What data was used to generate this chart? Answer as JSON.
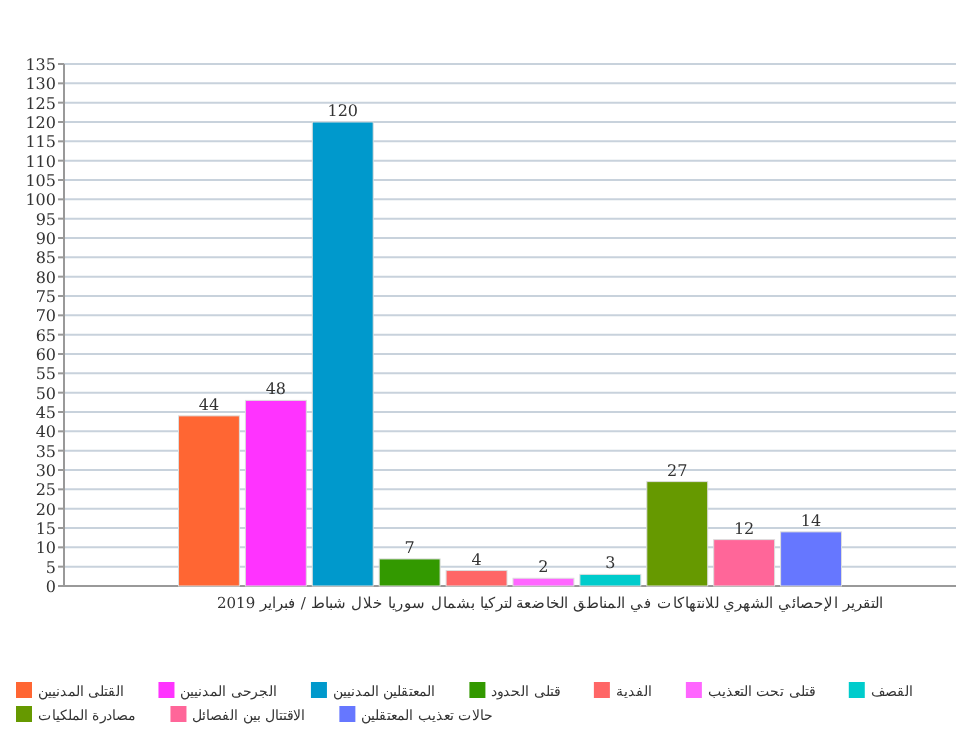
{
  "chart_data": {
    "type": "bar",
    "xlabel": "التقرير الإحصائي الشهري للانتهاكات في المناطق الخاضعة لتركيا بشمال سوريا خلال شباط / فبراير 2019",
    "categories": [
      null
    ],
    "series": [
      {
        "name": "القتلى المدنيين",
        "color": "#ff6633",
        "values": [
          44
        ]
      },
      {
        "name": "الجرحى المدنيين",
        "color": "#ff33ff",
        "values": [
          48
        ]
      },
      {
        "name": "المعتقلين المدنيين",
        "color": "#0099cc",
        "values": [
          120
        ]
      },
      {
        "name": "قتلى الحدود",
        "color": "#339900",
        "values": [
          7
        ]
      },
      {
        "name": "الفدية",
        "color": "#ff6666",
        "values": [
          4
        ]
      },
      {
        "name": "قتلى تحت التعذيب",
        "color": "#ff66ff",
        "values": [
          2
        ]
      },
      {
        "name": "القصف",
        "color": "#00cccc",
        "values": [
          3
        ]
      },
      {
        "name": "مصادرة الملكيات",
        "color": "#669900",
        "values": [
          27
        ]
      },
      {
        "name": "الاقتتال بين الفصائل",
        "color": "#ff6699",
        "values": [
          12
        ]
      },
      {
        "name": "حالات تعذيب المعتقلين",
        "color": "#6677ff",
        "values": [
          14
        ]
      }
    ],
    "ylim": [
      0,
      135
    ],
    "yticks": [
      0,
      5,
      10,
      15,
      20,
      25,
      30,
      35,
      40,
      45,
      50,
      55,
      60,
      65,
      70,
      75,
      80,
      85,
      90,
      95,
      100,
      105,
      110,
      115,
      120,
      125,
      130,
      135
    ],
    "grid": "y",
    "legend": "bottom",
    "data_labels": true
  }
}
